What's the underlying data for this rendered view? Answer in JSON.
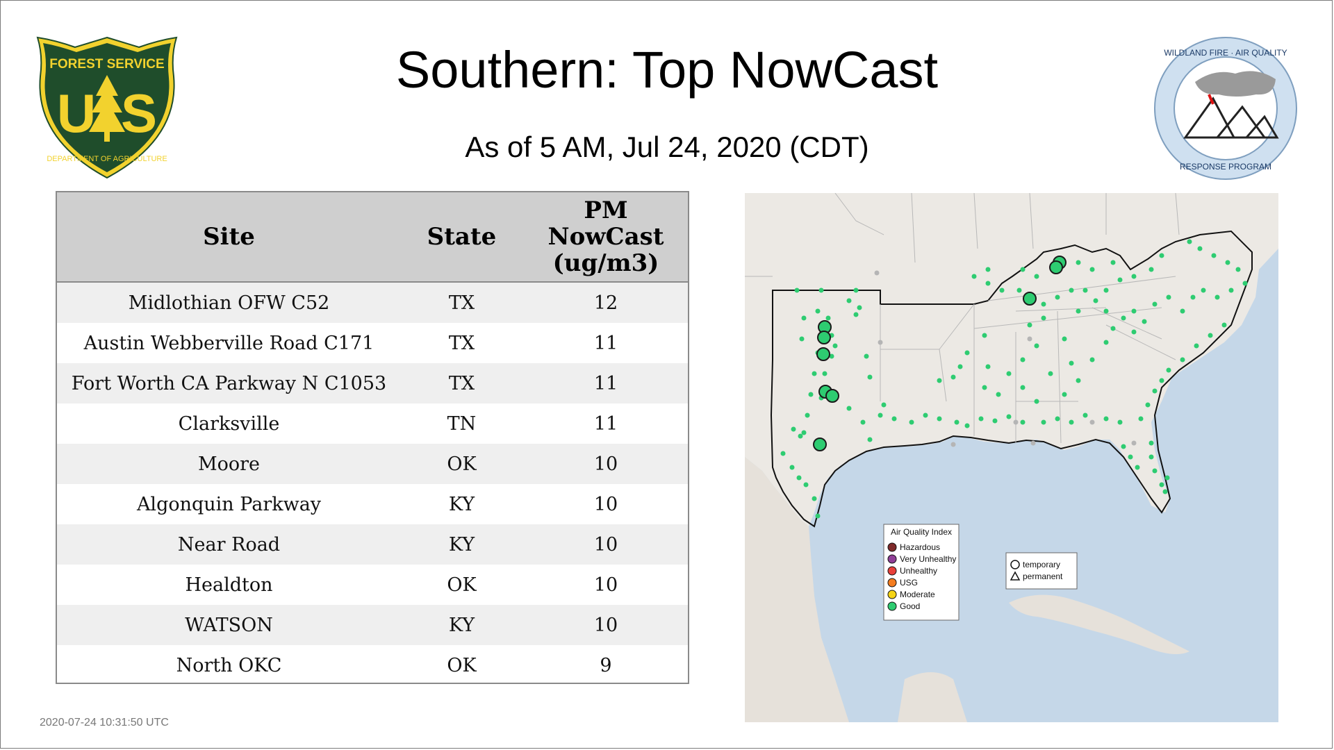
{
  "header": {
    "title": "Southern: Top NowCast",
    "subtitle": "As of  5 AM, Jul 24, 2020 (CDT)"
  },
  "logos": {
    "forest_service": "FOREST SERVICE",
    "forest_service_bottom": "DEPARTMENT OF AGRICULTURE",
    "forest_service_letters": "US",
    "wildland": "WILDLAND FIRE · AIR QUALITY",
    "wildland_bottom": "RESPONSE PROGRAM"
  },
  "table": {
    "columns": [
      "Site",
      "State",
      "PM NowCast (ug/m3)"
    ],
    "col_pm_line1": "PM",
    "col_pm_line2": "NowCast",
    "col_pm_line3": "(ug/m3)",
    "rows": [
      {
        "site": "Midlothian OFW C52",
        "state": "TX",
        "value": "12"
      },
      {
        "site": "Austin Webberville Road C171",
        "state": "TX",
        "value": "11"
      },
      {
        "site": "Fort Worth CA Parkway N C1053",
        "state": "TX",
        "value": "11"
      },
      {
        "site": "Clarksville",
        "state": "TN",
        "value": "11"
      },
      {
        "site": "Moore",
        "state": "OK",
        "value": "10"
      },
      {
        "site": "Algonquin Parkway",
        "state": "KY",
        "value": "10"
      },
      {
        "site": "Near Road",
        "state": "KY",
        "value": "10"
      },
      {
        "site": "Healdton",
        "state": "OK",
        "value": "10"
      },
      {
        "site": "WATSON",
        "state": "KY",
        "value": "10"
      },
      {
        "site": "North OKC",
        "state": "OK",
        "value": "9"
      }
    ]
  },
  "map_legend": {
    "title": "Air Quality Index",
    "items": [
      {
        "label": "Hazardous",
        "color": "#7e2a2a"
      },
      {
        "label": "Very Unhealthy",
        "color": "#8f3f97"
      },
      {
        "label": "Unhealthy",
        "color": "#e8403a"
      },
      {
        "label": "USG",
        "color": "#f47d20"
      },
      {
        "label": "Moderate",
        "color": "#f5d416"
      },
      {
        "label": "Good",
        "color": "#2ecc71"
      }
    ],
    "shape_items": [
      {
        "label": "temporary",
        "icon": "circle-icon"
      },
      {
        "label": "permanent",
        "icon": "triangle-icon"
      }
    ]
  },
  "colors": {
    "good": "#2ecc71",
    "header_bg": "#cfcfcf",
    "fs_green": "#1f4d2b",
    "fs_yellow": "#f2d22e",
    "water": "#c5d7e8",
    "land": "#ece9e4"
  },
  "footer": {
    "timestamp": "2020-07-24 10:31:50 UTC"
  }
}
